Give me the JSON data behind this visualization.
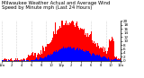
{
  "title_line1": "Milwaukee Weather Actual and Average Wind Speed by Minute mph (Last 24 Hours)",
  "background_color": "#ffffff",
  "bar_color_actual": "#ff0000",
  "bar_color_avg": "#0000ff",
  "num_points": 1440,
  "y_max": 20,
  "y_ticks": [
    0,
    2,
    4,
    6,
    8,
    10,
    12,
    14,
    16,
    18,
    20
  ],
  "title_fontsize": 3.8,
  "tick_fontsize": 3.0,
  "grid_color": "#aaaaaa"
}
